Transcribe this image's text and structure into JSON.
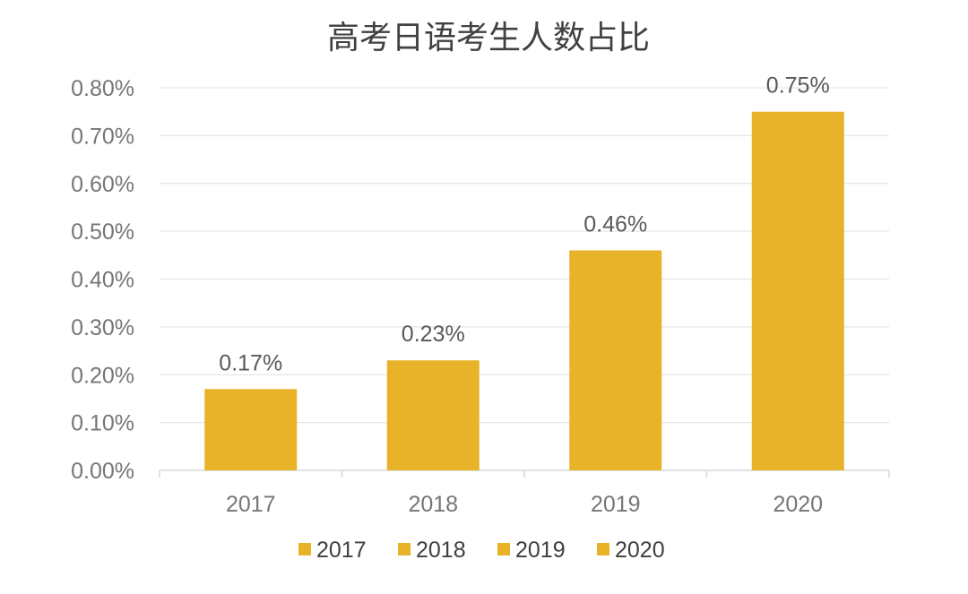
{
  "chart_data": {
    "type": "bar",
    "title": "高考日语考生人数占比",
    "categories": [
      "2017",
      "2018",
      "2019",
      "2020"
    ],
    "values": [
      0.17,
      0.23,
      0.46,
      0.75
    ],
    "data_labels": [
      "0.17%",
      "0.23%",
      "0.46%",
      "0.75%"
    ],
    "unit": "%",
    "ylim": [
      0,
      0.8
    ],
    "yticks": [
      0,
      0.1,
      0.2,
      0.3,
      0.4,
      0.5,
      0.6,
      0.7,
      0.8
    ],
    "ytick_labels": [
      "0.00%",
      "0.10%",
      "0.20%",
      "0.30%",
      "0.40%",
      "0.50%",
      "0.60%",
      "0.70%",
      "0.80%"
    ],
    "grid": true,
    "legend_position": "bottom",
    "legend": [
      "2017",
      "2018",
      "2019",
      "2020"
    ],
    "bar_color": "#E8B229",
    "grid_color": "#E6E6E6"
  }
}
